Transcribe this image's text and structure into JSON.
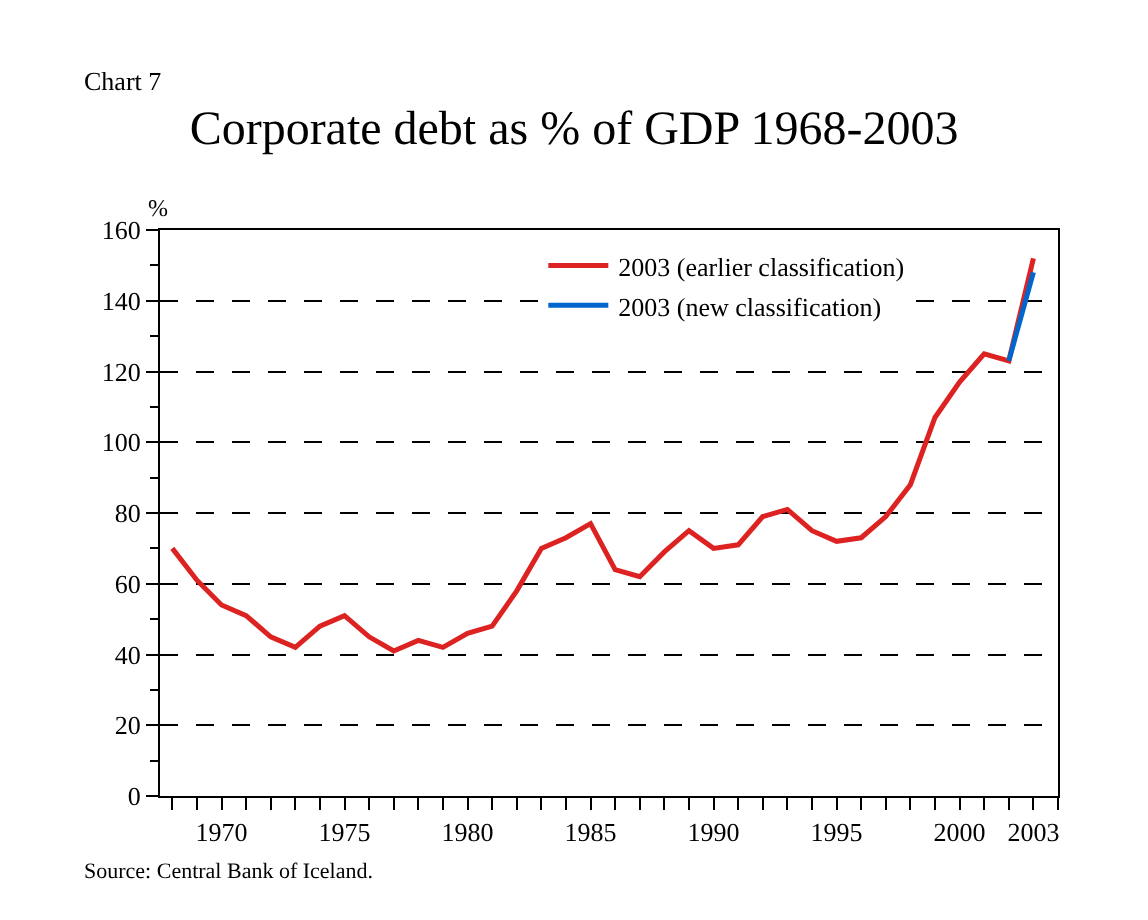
{
  "chart_data": {
    "type": "line",
    "title": "Corporate debt as % of GDP 1968-2003",
    "ylabel": "%",
    "annotations": [
      "Chart 7",
      "Source: Central Bank of Iceland."
    ],
    "x": [
      1968,
      1969,
      1970,
      1971,
      1972,
      1973,
      1974,
      1975,
      1976,
      1977,
      1978,
      1979,
      1980,
      1981,
      1982,
      1983,
      1984,
      1985,
      1986,
      1987,
      1988,
      1989,
      1990,
      1991,
      1992,
      1993,
      1994,
      1995,
      1996,
      1997,
      1998,
      1999,
      2000,
      2001,
      2002,
      2003
    ],
    "series": [
      {
        "name": "2003 (earlier classification)",
        "color": "#dd2222",
        "values": [
          70,
          61,
          54,
          51,
          45,
          42,
          48,
          51,
          45,
          41,
          44,
          42,
          46,
          48,
          58,
          70,
          73,
          77,
          64,
          62,
          69,
          75,
          70,
          71,
          79,
          81,
          75,
          72,
          73,
          79,
          88,
          107,
          117,
          125,
          123,
          152
        ]
      },
      {
        "name": "2003 (new classification)",
        "color": "#0066cc",
        "x": [
          2002,
          2003
        ],
        "values": [
          123,
          148
        ]
      }
    ],
    "xlim": [
      1967.5,
      2004
    ],
    "xticks": [
      1970,
      1975,
      1980,
      1985,
      1990,
      1995,
      2000,
      2003
    ],
    "ylim": [
      0,
      160
    ],
    "yticks": [
      0,
      20,
      40,
      60,
      80,
      100,
      120,
      140,
      160
    ],
    "grid": "y",
    "legend": "top right",
    "line_style": "solid"
  }
}
